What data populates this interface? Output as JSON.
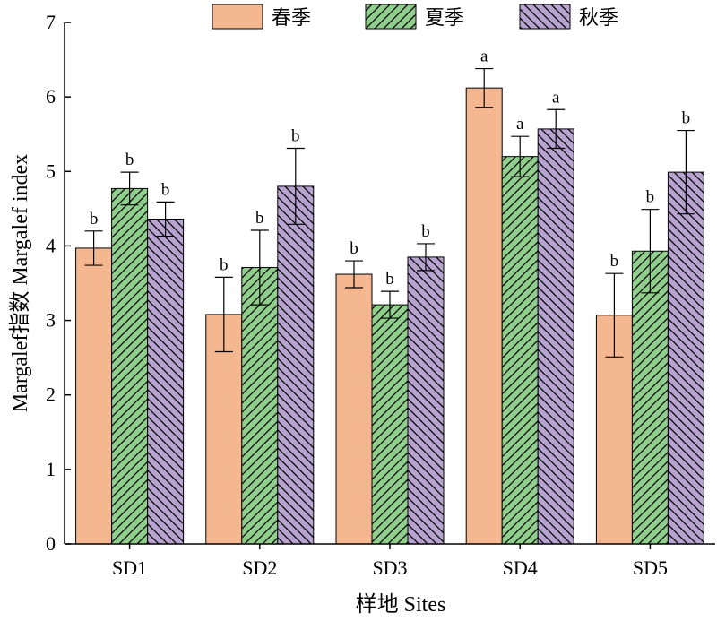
{
  "chart_data": {
    "type": "bar",
    "categories": [
      "SD1",
      "SD2",
      "SD3",
      "SD4",
      "SD5"
    ],
    "series": [
      {
        "name": "春季",
        "color": "#f5b78f",
        "pattern": "none",
        "values": [
          3.97,
          3.08,
          3.62,
          6.12,
          3.07
        ],
        "errors": [
          0.23,
          0.5,
          0.18,
          0.26,
          0.56
        ],
        "labels": [
          "b",
          "b",
          "b",
          "a",
          "b"
        ]
      },
      {
        "name": "夏季",
        "color": "#8fcf8b",
        "pattern": "forward-diagonal-hatch",
        "values": [
          4.77,
          3.71,
          3.21,
          5.2,
          3.93
        ],
        "errors": [
          0.22,
          0.5,
          0.18,
          0.27,
          0.56
        ],
        "labels": [
          "b",
          "b",
          "b",
          "a",
          "b"
        ]
      },
      {
        "name": "秋季",
        "color": "#b7a2d0",
        "pattern": "back-diagonal-hatch",
        "values": [
          4.36,
          4.8,
          3.85,
          5.57,
          4.99
        ],
        "errors": [
          0.23,
          0.51,
          0.18,
          0.26,
          0.56
        ],
        "labels": [
          "b",
          "b",
          "b",
          "a",
          "b"
        ]
      }
    ],
    "xlabel": "样地 Sites",
    "ylabel": "Margalef指数 Margalef index",
    "ylim": [
      0,
      7
    ],
    "yticks": [
      0,
      1,
      2,
      3,
      4,
      5,
      6,
      7
    ],
    "legend_position": "top",
    "grid": false
  }
}
